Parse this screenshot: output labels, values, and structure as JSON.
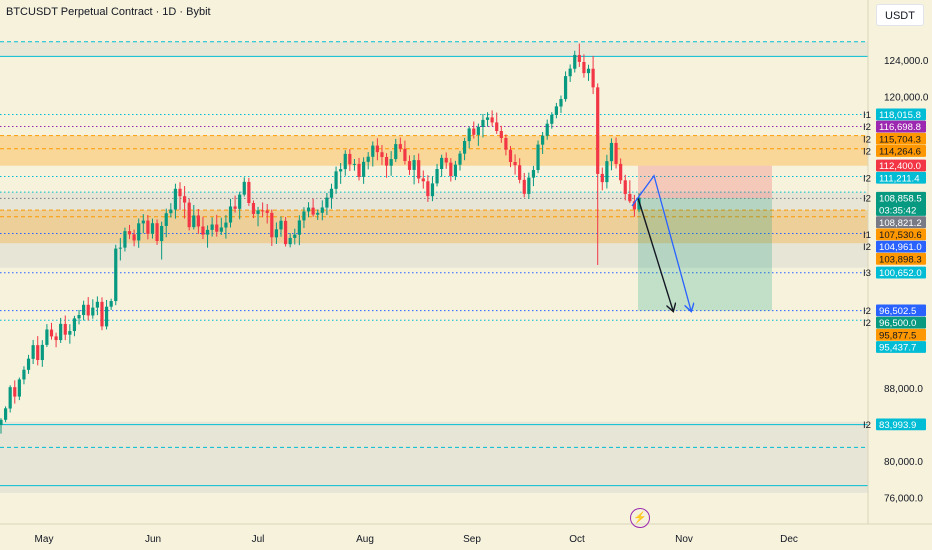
{
  "header": {
    "title": "BTCUSDT Perpetual Contract · 1D · Bybit",
    "currency_button": "USDT"
  },
  "icons": {
    "flash": "lightning-icon"
  },
  "colors": {
    "up": "#089981",
    "down": "#f23645",
    "background": "#f6f2dc",
    "cyan": "#00bcd4",
    "blue": "#2962ff",
    "orange": "#ff9800",
    "purple": "#9c27b0",
    "gray": "#787b86",
    "dark": "#131722"
  },
  "chart_data": {
    "type": "candlestick",
    "title": "BTCUSDT Perpetual Contract · 1D · Bybit",
    "y_axis": {
      "ticks": [
        "124,000.0",
        "120,000.0",
        "88,000.0",
        "80,000.0",
        "76,000.0"
      ],
      "side": "right"
    },
    "x_axis": {
      "ticks": [
        "May",
        "Jun",
        "Jul",
        "Aug",
        "Sep",
        "Oct",
        "Nov",
        "Dec"
      ]
    },
    "price_labels": [
      {
        "text": "118,015.8",
        "level": 118015.8,
        "bg": "#00bcd4",
        "fg": "#ffffff",
        "tag": "I1"
      },
      {
        "text": "116,698.8",
        "level": 116698.8,
        "bg": "#9c27b0",
        "fg": "#ffffff",
        "tag": "I2"
      },
      {
        "text": "115,704.3",
        "level": 115704.3,
        "bg": "#ff9800",
        "fg": "#131722",
        "tag": "I2"
      },
      {
        "text": "114,264.6",
        "level": 114264.6,
        "bg": "#ff9800",
        "fg": "#131722",
        "tag": "I2"
      },
      {
        "text": "112,400.0",
        "level": 112400.0,
        "bg": "#f23645",
        "fg": "#ffffff",
        "tag": ""
      },
      {
        "text": "111,211.4",
        "level": 111211.4,
        "bg": "#00bcd4",
        "fg": "#ffffff",
        "tag": "I2"
      },
      {
        "text": "108,858.5",
        "level": 108858.5,
        "bg": "#089981",
        "fg": "#ffffff",
        "tag": "I2",
        "countdown": "03:35:42"
      },
      {
        "text": "108,821.2",
        "level": 108821.2,
        "bg": "#787b86",
        "fg": "#ffffff",
        "tag": ""
      },
      {
        "text": "107,530.6",
        "level": 107530.6,
        "bg": "#ff9800",
        "fg": "#131722",
        "tag": "I1"
      },
      {
        "text": "104,961.0",
        "level": 104961.0,
        "bg": "#2962ff",
        "fg": "#ffffff",
        "tag": "I2"
      },
      {
        "text": "103,898.3",
        "level": 103898.3,
        "bg": "#ff9800",
        "fg": "#131722",
        "tag": ""
      },
      {
        "text": "100,652.0",
        "level": 100652.0,
        "bg": "#00bcd4",
        "fg": "#ffffff",
        "tag": "I3"
      },
      {
        "text": "96,502.5",
        "level": 96502.5,
        "bg": "#2962ff",
        "fg": "#ffffff",
        "tag": "I2"
      },
      {
        "text": "96,500.0",
        "level": 96500.0,
        "bg": "#089981",
        "fg": "#ffffff",
        "tag": "I2"
      },
      {
        "text": "95,877.5",
        "level": 95877.5,
        "bg": "#ff9800",
        "fg": "#131722",
        "tag": ""
      },
      {
        "text": "95,437.7",
        "level": 95437.7,
        "bg": "#00bcd4",
        "fg": "#ffffff",
        "tag": ""
      },
      {
        "text": "83,993.9",
        "level": 83993.9,
        "bg": "#00bcd4",
        "fg": "#ffffff",
        "tag": "I2"
      }
    ],
    "horizontal_levels": [
      {
        "level": 126000,
        "style": "dashed",
        "color": "#00bcd4"
      },
      {
        "level": 124400,
        "style": "solid",
        "color": "#00bcd4"
      },
      {
        "level": 118015.8,
        "style": "dotted",
        "color": "#00bcd4"
      },
      {
        "level": 116698.8,
        "style": "dotted",
        "color": "#9c27b0"
      },
      {
        "level": 115704.3,
        "style": "dashed",
        "color": "#ff9800"
      },
      {
        "level": 114264.6,
        "style": "dashed",
        "color": "#ff9800"
      },
      {
        "level": 111211.4,
        "style": "dotted",
        "color": "#00bcd4"
      },
      {
        "level": 109500,
        "style": "dotted",
        "color": "#00bcd4"
      },
      {
        "level": 108821.2,
        "style": "dotted",
        "color": "#787b86"
      },
      {
        "level": 107530.6,
        "style": "dashed",
        "color": "#ff9800"
      },
      {
        "level": 106800,
        "style": "dashed",
        "color": "#ff9800"
      },
      {
        "level": 104961.0,
        "style": "dotted",
        "color": "#2962ff"
      },
      {
        "level": 100652.0,
        "style": "dotted",
        "color": "#2962ff"
      },
      {
        "level": 96502.5,
        "style": "dotted",
        "color": "#2962ff"
      },
      {
        "level": 95437.7,
        "style": "dotted",
        "color": "#00bcd4"
      },
      {
        "level": 83993.9,
        "style": "solid",
        "color": "#00bcd4"
      },
      {
        "level": 81500,
        "style": "dashed",
        "color": "#00bcd4"
      },
      {
        "level": 77300,
        "style": "solid",
        "color": "#00bcd4"
      }
    ],
    "zones": [
      {
        "from": 101200,
        "to": 109500,
        "color": "#b2b5be",
        "opacity": 0.22
      },
      {
        "from": 103898.3,
        "to": 107530.6,
        "color": "#ff9800",
        "opacity": 0.28
      },
      {
        "from": 112400.0,
        "to": 115704.3,
        "color": "#ff9800",
        "opacity": 0.3
      },
      {
        "from": 76500,
        "to": 84300,
        "color": "#b2b5be",
        "opacity": 0.22
      },
      {
        "from": 124400,
        "to": 126000,
        "color": "#b2b5be",
        "opacity": 0.18
      }
    ],
    "position": {
      "entry": 108858.5,
      "stop": 112400.0,
      "target": 96502.5
    },
    "ohlc": [
      [
        83960,
        84705,
        83000,
        84520
      ],
      [
        84520,
        85995,
        84260,
        85780
      ],
      [
        85760,
        88310,
        85320,
        88100
      ],
      [
        88100,
        88850,
        86300,
        87070
      ],
      [
        87070,
        89160,
        86680,
        88950
      ],
      [
        88950,
        90395,
        88420,
        90010
      ],
      [
        90000,
        91650,
        89560,
        91230
      ],
      [
        91210,
        93285,
        90640,
        92710
      ],
      [
        92710,
        93705,
        90500,
        91080
      ],
      [
        91080,
        93260,
        90330,
        92740
      ],
      [
        92740,
        95020,
        92510,
        94430
      ],
      [
        94420,
        95160,
        93320,
        93670
      ],
      [
        93670,
        94080,
        92480,
        93270
      ],
      [
        93270,
        95700,
        92950,
        95050
      ],
      [
        95040,
        95960,
        93260,
        93860
      ],
      [
        93860,
        95010,
        92870,
        94260
      ],
      [
        94260,
        95925,
        93690,
        95650
      ],
      [
        95650,
        96575,
        94990,
        96020
      ],
      [
        96020,
        97590,
        95420,
        97140
      ],
      [
        97140,
        97990,
        95420,
        95970
      ],
      [
        95970,
        97745,
        95610,
        96830
      ],
      [
        96830,
        98060,
        96005,
        97470
      ],
      [
        97460,
        97965,
        94350,
        94770
      ],
      [
        94770,
        97670,
        94440,
        96930
      ],
      [
        96930,
        97810,
        96580,
        97550
      ],
      [
        97550,
        103730,
        97100,
        103310
      ],
      [
        103300,
        104475,
        102000,
        103410
      ],
      [
        103410,
        105610,
        102990,
        105220
      ],
      [
        105220,
        105905,
        104350,
        104870
      ],
      [
        104870,
        105400,
        103560,
        104200
      ],
      [
        104200,
        106610,
        103390,
        106080
      ],
      [
        106070,
        107080,
        104985,
        106380
      ],
      [
        106380,
        106995,
        104320,
        104930
      ],
      [
        104930,
        106595,
        104405,
        106090
      ],
      [
        106090,
        106510,
        103715,
        104140
      ],
      [
        104140,
        106255,
        102100,
        105790
      ],
      [
        105790,
        107690,
        104550,
        107190
      ],
      [
        107190,
        108290,
        106720,
        107590
      ],
      [
        107590,
        110425,
        106590,
        109870
      ],
      [
        109870,
        110590,
        107540,
        109050
      ],
      [
        109050,
        110170,
        106600,
        108360
      ],
      [
        108350,
        108780,
        105300,
        105660
      ],
      [
        105660,
        108090,
        105405,
        106940
      ],
      [
        106940,
        107650,
        104930,
        105730
      ],
      [
        105730,
        106800,
        104350,
        104840
      ],
      [
        104840,
        105850,
        103410,
        105360
      ],
      [
        105360,
        106730,
        104630,
        105950
      ],
      [
        105950,
        107015,
        104620,
        105160
      ],
      [
        105160,
        106700,
        104800,
        105620
      ],
      [
        105620,
        106980,
        104400,
        106160
      ],
      [
        106160,
        108755,
        105620,
        107930
      ],
      [
        107930,
        109115,
        107250,
        107670
      ],
      [
        107670,
        109550,
        106520,
        109230
      ],
      [
        109230,
        111135,
        109020,
        110630
      ],
      [
        110620,
        111070,
        107990,
        108310
      ],
      [
        108310,
        108590,
        106650,
        107110
      ],
      [
        107110,
        107880,
        105750,
        107500
      ],
      [
        107500,
        108370,
        106750,
        107480
      ],
      [
        107470,
        108200,
        106060,
        107220
      ],
      [
        107220,
        107600,
        103600,
        104550
      ],
      [
        104540,
        106170,
        103815,
        105420
      ],
      [
        105410,
        106835,
        104600,
        106360
      ],
      [
        106350,
        106780,
        103530,
        103800
      ],
      [
        103790,
        104995,
        103445,
        104480
      ],
      [
        104480,
        105495,
        103760,
        104840
      ],
      [
        104830,
        106960,
        103690,
        106400
      ],
      [
        106400,
        107850,
        105565,
        107380
      ],
      [
        107380,
        108405,
        106750,
        107810
      ],
      [
        107800,
        108790,
        106800,
        107040
      ],
      [
        107030,
        107600,
        106450,
        107230
      ],
      [
        107230,
        108600,
        106410,
        107820
      ],
      [
        107810,
        109405,
        106990,
        108900
      ],
      [
        108890,
        110425,
        107675,
        109870
      ],
      [
        109860,
        112305,
        109320,
        111780
      ],
      [
        111770,
        112700,
        110410,
        112030
      ],
      [
        112030,
        114105,
        111300,
        113700
      ],
      [
        113690,
        114225,
        111830,
        112550
      ],
      [
        112550,
        113140,
        111850,
        112600
      ],
      [
        112600,
        113260,
        110785,
        111180
      ],
      [
        111180,
        113325,
        110410,
        112830
      ],
      [
        112820,
        113895,
        112000,
        113390
      ],
      [
        113380,
        115065,
        112310,
        114610
      ],
      [
        114610,
        115415,
        113000,
        113890
      ],
      [
        113880,
        114670,
        112470,
        113360
      ],
      [
        113360,
        113780,
        111080,
        112410
      ],
      [
        112400,
        114000,
        111295,
        113130
      ],
      [
        113130,
        115340,
        112810,
        114770
      ],
      [
        114770,
        115490,
        113900,
        114270
      ],
      [
        114260,
        115160,
        112530,
        112920
      ],
      [
        112910,
        113535,
        111390,
        111940
      ],
      [
        111940,
        113560,
        110350,
        113020
      ],
      [
        113010,
        113745,
        110475,
        111000
      ],
      [
        111000,
        111880,
        109885,
        110690
      ],
      [
        110690,
        111365,
        108430,
        109060
      ],
      [
        109060,
        111230,
        108510,
        110460
      ],
      [
        110460,
        112605,
        110130,
        112040
      ],
      [
        112040,
        113615,
        111195,
        113260
      ],
      [
        113260,
        113860,
        112060,
        112750
      ],
      [
        112740,
        113230,
        110670,
        111270
      ],
      [
        111270,
        112935,
        110815,
        112520
      ],
      [
        112510,
        114025,
        111880,
        113730
      ],
      [
        113720,
        115465,
        113005,
        115110
      ],
      [
        115100,
        116710,
        114320,
        116490
      ],
      [
        116480,
        117250,
        115380,
        115790
      ],
      [
        115780,
        117020,
        114580,
        116660
      ],
      [
        116650,
        118080,
        115500,
        117430
      ],
      [
        117430,
        118270,
        116690,
        117700
      ],
      [
        117700,
        118475,
        116760,
        117150
      ],
      [
        117150,
        118230,
        115890,
        116210
      ],
      [
        116210,
        116780,
        114910,
        115440
      ],
      [
        115440,
        115835,
        113530,
        114160
      ],
      [
        114150,
        114560,
        112245,
        112810
      ],
      [
        112810,
        113640,
        111425,
        112460
      ],
      [
        112450,
        113220,
        110470,
        110850
      ],
      [
        110850,
        111605,
        108925,
        109320
      ],
      [
        109310,
        111650,
        108770,
        111100
      ],
      [
        111090,
        112385,
        110160,
        111930
      ],
      [
        111930,
        115165,
        111585,
        114720
      ],
      [
        114710,
        116105,
        113690,
        115700
      ],
      [
        115690,
        117465,
        115250,
        117010
      ],
      [
        117000,
        118275,
        116465,
        117980
      ],
      [
        117970,
        119290,
        117605,
        118910
      ],
      [
        118900,
        120100,
        118195,
        119720
      ],
      [
        119710,
        122750,
        119425,
        122230
      ],
      [
        122220,
        123510,
        121590,
        123050
      ],
      [
        123040,
        125015,
        122630,
        124560
      ],
      [
        124550,
        125800,
        123240,
        123790
      ],
      [
        123780,
        124620,
        122070,
        122560
      ],
      [
        122560,
        123485,
        121710,
        123040
      ],
      [
        123040,
        124450,
        120260,
        121000
      ],
      [
        121000,
        121440,
        101500,
        111500
      ],
      [
        111500,
        112200,
        109700,
        110600
      ],
      [
        110600,
        113600,
        109900,
        112900
      ],
      [
        112900,
        115400,
        111900,
        114900
      ],
      [
        114900,
        115500,
        112100,
        112600
      ],
      [
        112600,
        113200,
        110400,
        110800
      ],
      [
        110800,
        111400,
        108600,
        109300
      ],
      [
        109300,
        110800,
        108300,
        108500
      ],
      [
        108500,
        109200,
        106800,
        107600
      ],
      [
        107600,
        109400,
        107300,
        108900
      ]
    ]
  }
}
